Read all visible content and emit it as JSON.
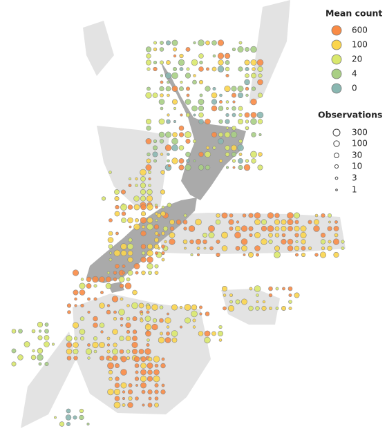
{
  "legend": {
    "mean_count": {
      "title": "Mean count",
      "items": [
        {
          "label": "600",
          "color": "#f98b45"
        },
        {
          "label": "100",
          "color": "#fbd54c"
        },
        {
          "label": "20",
          "color": "#d9e86c"
        },
        {
          "label": "4",
          "color": "#a9cf84"
        },
        {
          "label": "0",
          "color": "#89b7b1"
        }
      ]
    },
    "observations": {
      "title": "Observations",
      "items": [
        "300",
        "100",
        "30",
        "10",
        "3",
        "1"
      ]
    }
  }
}
